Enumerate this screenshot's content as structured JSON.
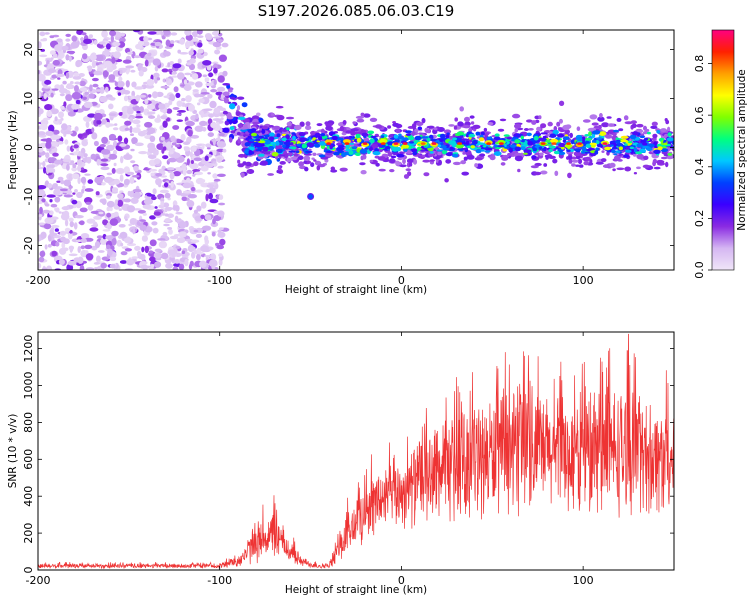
{
  "figure_title": "S197.2026.085.06.03.C19",
  "chart_data": [
    {
      "type": "heatmap",
      "panel": "spectrogram",
      "title": "S197.2026.085.06.03.C19",
      "xlabel": "Height of straight line (km)",
      "ylabel": "Frequency (Hz)",
      "xlim": [
        -200,
        150
      ],
      "ylim": [
        -25,
        24
      ],
      "xticks": [
        -200,
        -100,
        0,
        100
      ],
      "xtick_labels": [
        "-200",
        "-100",
        "0",
        "100"
      ],
      "yticks": [
        -20,
        -10,
        0,
        10,
        20
      ],
      "ytick_labels": [
        "-20",
        "-10",
        "0",
        "10",
        "20"
      ],
      "colorbar": {
        "label": "Normalized spectral amplitude",
        "range": [
          0.0,
          0.93
        ],
        "ticks": [
          0.0,
          0.2,
          0.4,
          0.6,
          0.8
        ],
        "tick_labels": [
          "0.0",
          "0.2",
          "0.4",
          "0.6",
          "0.8"
        ],
        "colormap_stops": [
          "#f0e6f8",
          "#d5b6f2",
          "#8a2be2",
          "#3a00ff",
          "#0040ff",
          "#00c8ff",
          "#00ff80",
          "#80ff00",
          "#ffff00",
          "#ffa000",
          "#ff2000",
          "#ff0080"
        ]
      },
      "features": {
        "noise_region_x": [
          -200,
          -97
        ],
        "signal_onset_x": -97,
        "onset_frequency_hz": 10,
        "carrier_frequency_hz": 0.8,
        "carrier_band_halfwidth_hz": 3,
        "secondary_blob": {
          "x": -50,
          "frequency_hz": -10
        }
      }
    },
    {
      "type": "line",
      "panel": "snr",
      "xlabel": "Height of straight line (km)",
      "ylabel": "SNR (10 * v/v)",
      "xlim": [
        -200,
        150
      ],
      "ylim": [
        0,
        1290
      ],
      "color": "#ee3333",
      "xticks": [
        -200,
        -100,
        0,
        100
      ],
      "xtick_labels": [
        "-200",
        "-100",
        "0",
        "100"
      ],
      "yticks": [
        0,
        200,
        400,
        600,
        800,
        1000,
        1200
      ],
      "ytick_labels": [
        "0",
        "200",
        "400",
        "600",
        "800",
        "1000",
        "1200"
      ],
      "series": [
        {
          "name": "SNR",
          "x": [
            -200,
            -150,
            -100,
            -88,
            -80,
            -70,
            -62,
            -55,
            -48,
            -40,
            -30,
            -22,
            -15,
            -8,
            0,
            10,
            20,
            30,
            40,
            50,
            60,
            70,
            80,
            90,
            100,
            110,
            120,
            130,
            140,
            150
          ],
          "mean": [
            22,
            22,
            22,
            60,
            150,
            200,
            110,
            45,
            25,
            20,
            190,
            300,
            360,
            400,
            420,
            480,
            530,
            560,
            600,
            620,
            640,
            650,
            640,
            620,
            610,
            640,
            650,
            630,
            610,
            600
          ],
          "spread": [
            12,
            12,
            12,
            40,
            100,
            120,
            70,
            25,
            15,
            12,
            120,
            150,
            160,
            170,
            180,
            220,
            250,
            270,
            290,
            300,
            310,
            300,
            290,
            280,
            300,
            320,
            330,
            300,
            290,
            280
          ],
          "peak": {
            "x": 125,
            "y": 1280
          }
        }
      ]
    }
  ]
}
